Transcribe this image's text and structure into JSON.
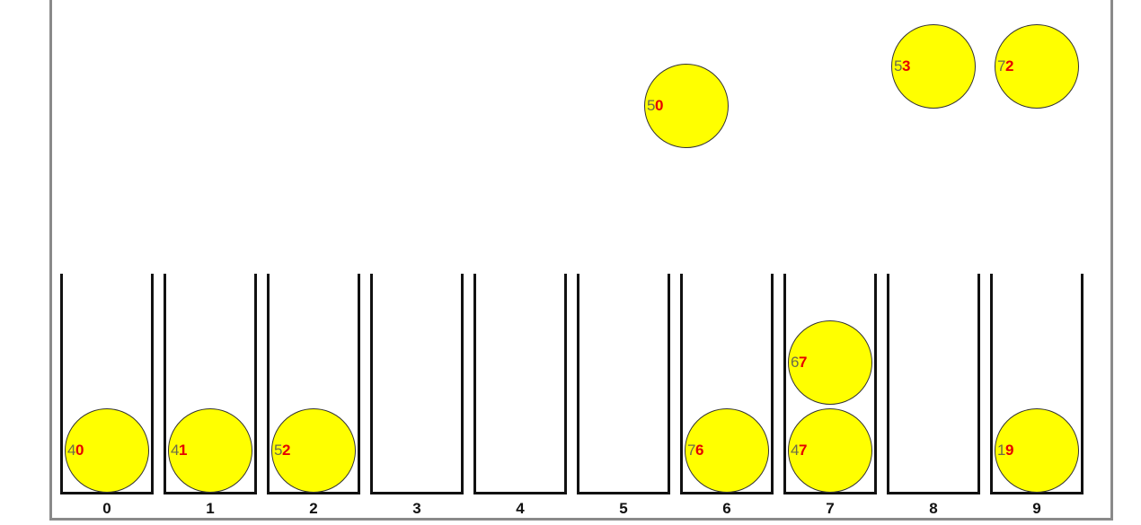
{
  "buckets": [
    {
      "label": "0"
    },
    {
      "label": "1"
    },
    {
      "label": "2"
    },
    {
      "label": "3"
    },
    {
      "label": "4"
    },
    {
      "label": "5"
    },
    {
      "label": "6"
    },
    {
      "label": "7"
    },
    {
      "label": "8"
    },
    {
      "label": "9"
    }
  ],
  "balls_in_buckets": [
    {
      "bucket": 0,
      "stack_level": 0,
      "tens": "4",
      "ones": "0"
    },
    {
      "bucket": 1,
      "stack_level": 0,
      "tens": "4",
      "ones": "1"
    },
    {
      "bucket": 2,
      "stack_level": 0,
      "tens": "5",
      "ones": "2"
    },
    {
      "bucket": 6,
      "stack_level": 0,
      "tens": "7",
      "ones": "6"
    },
    {
      "bucket": 7,
      "stack_level": 0,
      "tens": "4",
      "ones": "7"
    },
    {
      "bucket": 7,
      "stack_level": 1,
      "tens": "6",
      "ones": "7"
    },
    {
      "bucket": 9,
      "stack_level": 0,
      "tens": "1",
      "ones": "9"
    }
  ],
  "falling_balls": [
    {
      "tens": "5",
      "ones": "0"
    },
    {
      "tens": "5",
      "ones": "3"
    },
    {
      "tens": "7",
      "ones": "2"
    }
  ],
  "colors": {
    "ball_fill": "#ffff00",
    "ones_digit": "#e60000",
    "tens_digit": "#6b6b4a",
    "bucket_border": "#111111"
  }
}
